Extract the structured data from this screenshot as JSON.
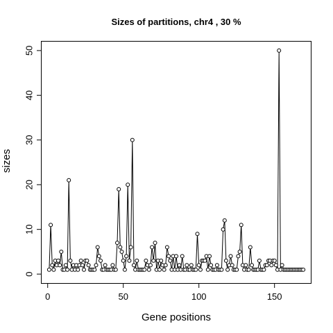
{
  "chart_data": {
    "type": "line",
    "title": "Sizes of partitions, chr4 , 30 %",
    "xlabel": "Gene positions",
    "ylabel": "sizes",
    "xlim": [
      -4,
      174
    ],
    "ylim": [
      -2,
      52
    ],
    "x_ticks": [
      0,
      50,
      100,
      150
    ],
    "y_ticks": [
      0,
      10,
      20,
      30,
      40,
      50
    ],
    "grid": false,
    "marker": "open-circle",
    "x": [
      1,
      2,
      3,
      4,
      5,
      6,
      7,
      8,
      9,
      10,
      11,
      12,
      13,
      14,
      15,
      16,
      17,
      18,
      19,
      20,
      21,
      22,
      23,
      24,
      25,
      26,
      27,
      28,
      29,
      30,
      31,
      32,
      33,
      34,
      35,
      36,
      37,
      38,
      39,
      40,
      41,
      42,
      43,
      44,
      45,
      46,
      47,
      48,
      49,
      50,
      51,
      52,
      53,
      54,
      55,
      56,
      57,
      58,
      59,
      60,
      61,
      62,
      63,
      64,
      65,
      66,
      67,
      68,
      69,
      70,
      71,
      72,
      73,
      74,
      75,
      76,
      77,
      78,
      79,
      80,
      81,
      82,
      83,
      84,
      85,
      86,
      87,
      88,
      89,
      90,
      91,
      92,
      93,
      94,
      95,
      96,
      97,
      98,
      99,
      100,
      101,
      102,
      103,
      104,
      105,
      106,
      107,
      108,
      109,
      110,
      111,
      112,
      113,
      114,
      115,
      116,
      117,
      118,
      119,
      120,
      121,
      122,
      123,
      124,
      125,
      126,
      127,
      128,
      129,
      130,
      131,
      132,
      133,
      134,
      135,
      136,
      137,
      138,
      139,
      140,
      141,
      142,
      143,
      144,
      145,
      146,
      147,
      148,
      149,
      150,
      151,
      152,
      153,
      154,
      155,
      156,
      157,
      158,
      159,
      160,
      161,
      162,
      163,
      164,
      165,
      166,
      167,
      168,
      169
    ],
    "values": [
      1,
      11,
      2,
      1,
      3,
      2,
      3,
      2,
      5,
      1,
      1,
      2,
      1,
      21,
      3,
      1,
      2,
      1,
      2,
      1,
      2,
      3,
      2,
      1,
      3,
      3,
      2,
      1,
      1,
      1,
      1,
      2,
      6,
      4,
      3,
      1,
      1,
      2,
      1,
      1,
      1,
      1,
      2,
      1,
      1,
      7,
      19,
      6,
      5,
      3,
      1,
      4,
      20,
      3,
      6,
      30,
      2,
      1,
      3,
      1,
      1,
      1,
      1,
      1,
      3,
      2,
      1,
      2,
      6,
      3,
      7,
      1,
      3,
      1,
      3,
      2,
      1,
      2,
      6,
      4,
      3,
      1,
      4,
      1,
      4,
      1,
      2,
      1,
      4,
      1,
      1,
      2,
      1,
      1,
      2,
      1,
      1,
      1,
      9,
      2,
      1,
      3,
      3,
      3,
      4,
      1,
      4,
      2,
      1,
      1,
      1,
      2,
      1,
      1,
      1,
      10,
      12,
      3,
      1,
      2,
      4,
      2,
      1,
      1,
      1,
      4,
      5,
      11,
      2,
      1,
      2,
      1,
      1,
      6,
      2,
      1,
      1,
      1,
      1,
      3,
      1,
      1,
      1,
      2,
      2,
      3,
      3,
      2,
      3,
      3,
      2,
      1,
      50,
      1,
      2,
      1,
      1,
      1,
      1,
      1,
      1,
      1,
      1,
      1,
      1,
      1,
      1,
      1,
      1
    ],
    "x_display_note": ""
  }
}
